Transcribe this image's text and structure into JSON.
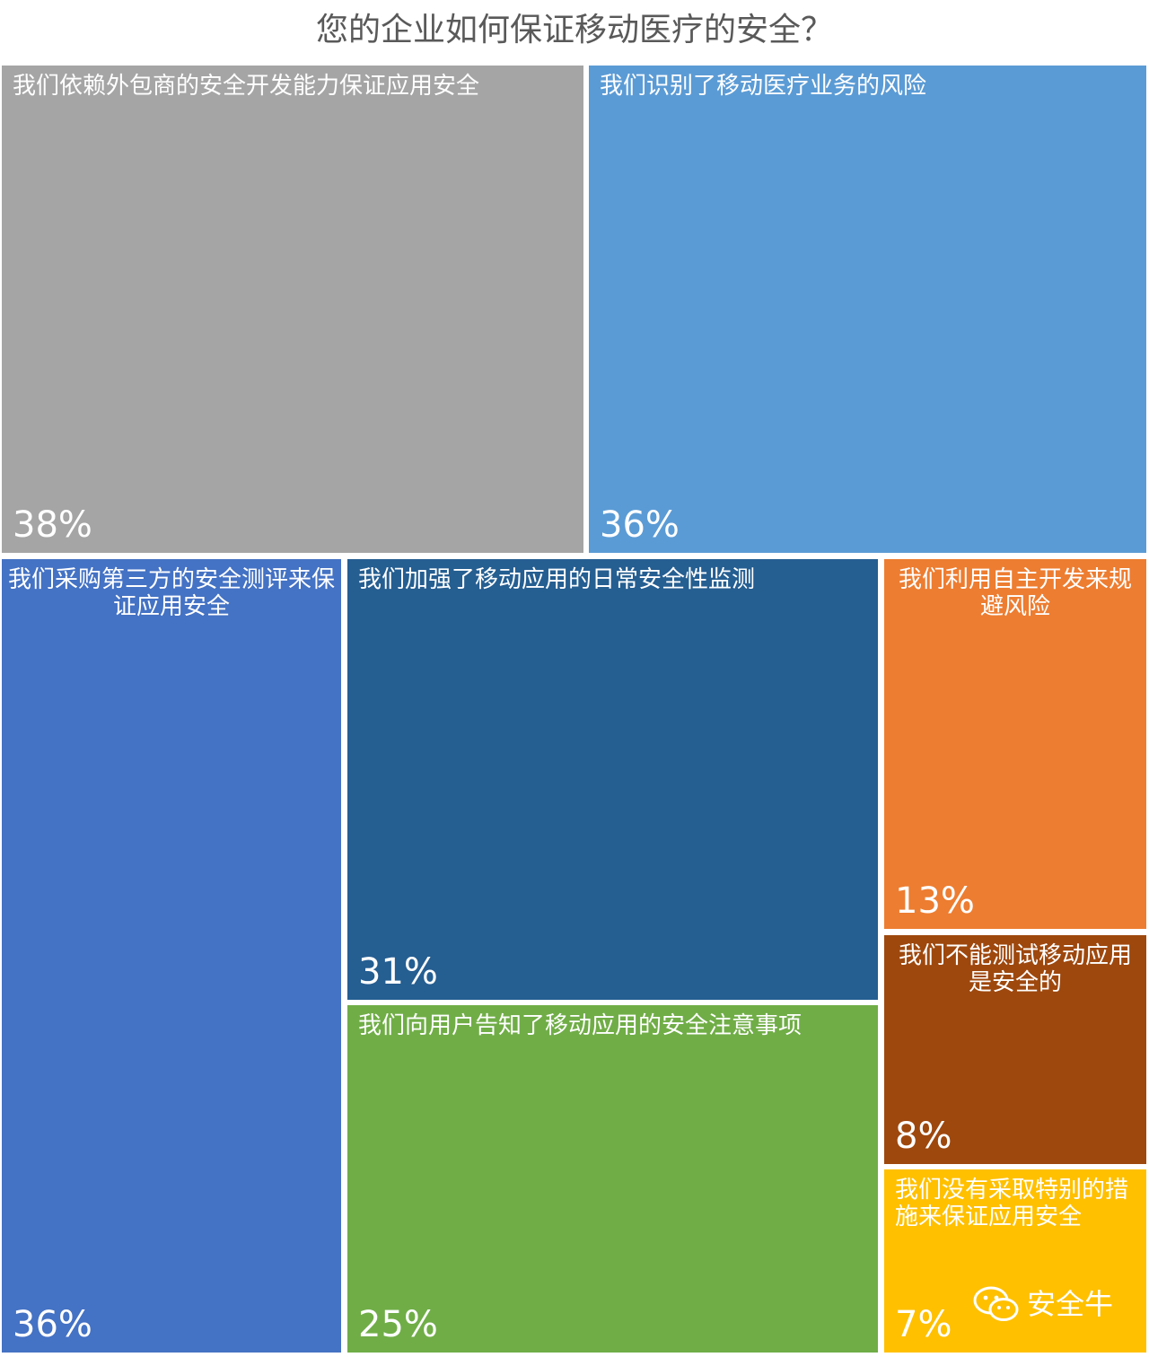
{
  "chart_data": {
    "type": "treemap",
    "title": "您的企业如何保证移动医疗的安全？",
    "items": [
      {
        "label": "我们依赖外包商的安全开发能力保证应用安全",
        "value": 38,
        "value_label": "38%",
        "color": "#a5a5a5"
      },
      {
        "label": "我们识别了移动医疗业务的风险",
        "value": 36,
        "value_label": "36%",
        "color": "#5b9bd5"
      },
      {
        "label": "我们采购第三方的安全测评来保证应用安全",
        "value": 36,
        "value_label": "36%",
        "color": "#4472c4"
      },
      {
        "label": "我们加强了移动应用的日常安全性监测",
        "value": 31,
        "value_label": "31%",
        "color": "#255e91"
      },
      {
        "label": "我们向用户告知了移动应用的安全注意事项",
        "value": 25,
        "value_label": "25%",
        "color": "#70ad47"
      },
      {
        "label": "我们利用自主开发来规避风险",
        "value": 13,
        "value_label": "13%",
        "color": "#ed7d31"
      },
      {
        "label": "我们不能测试移动应用是安全的",
        "value": 8,
        "value_label": "8%",
        "color": "#9e480e"
      },
      {
        "label": "我们没有采取特别的措施来保证应用安全",
        "value": 7,
        "value_label": "7%",
        "color": "#ffc000"
      }
    ]
  },
  "watermark": {
    "text": "安全牛",
    "icon": "wechat-icon"
  }
}
